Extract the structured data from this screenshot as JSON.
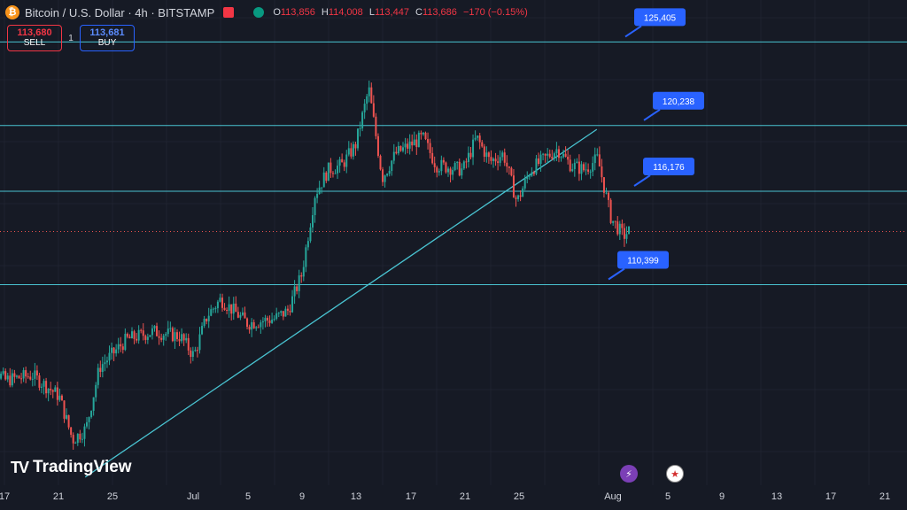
{
  "header": {
    "icon": "bitcoin-icon",
    "symbol": "Bitcoin / U.S. Dollar · 4h · BITSTAMP",
    "ohlc": {
      "o_label": "O",
      "o": "113,856",
      "h_label": "H",
      "h": "114,008",
      "l_label": "L",
      "l": "113,447",
      "c_label": "C",
      "c": "113,686",
      "change": "−170 (−0.15%)"
    }
  },
  "trade": {
    "sell_price": "113,680",
    "sell_label": "SELL",
    "spread": "1",
    "buy_price": "113,681",
    "buy_label": "BUY"
  },
  "logo": {
    "text": "TradingView"
  },
  "colors": {
    "background": "#161a25",
    "up": "#26a69a",
    "down": "#ef5350",
    "line": "#49c3d1",
    "label_bg": "#2962ff"
  },
  "price_labels": [
    "125,405",
    "120,238",
    "116,176",
    "110,399"
  ],
  "x_axis": [
    "17",
    "21",
    "25",
    "Jul",
    "5",
    "9",
    "13",
    "17",
    "21",
    "25",
    "Aug",
    "5",
    "9",
    "13",
    "17",
    "21"
  ],
  "chart_data": {
    "type": "candlestick",
    "horizontal_levels": [
      125405,
      120238,
      116176,
      110399
    ],
    "current_price": 113686,
    "price_range": [
      98000,
      128000
    ],
    "trendline": {
      "from": [
        "Jun 23",
        98500
      ],
      "to": [
        "Jul 31",
        120000
      ]
    },
    "close_path": [
      {
        "t": "Jun 15",
        "close": 106000
      },
      {
        "t": "Jun 17",
        "close": 104500
      },
      {
        "t": "Jun 19",
        "close": 104800
      },
      {
        "t": "Jun 21",
        "close": 103500
      },
      {
        "t": "Jun 22",
        "close": 100800
      },
      {
        "t": "Jun 23",
        "close": 101500
      },
      {
        "t": "Jun 24",
        "close": 105300
      },
      {
        "t": "Jun 26",
        "close": 107000
      },
      {
        "t": "Jun 28",
        "close": 107500
      },
      {
        "t": "Jun 30",
        "close": 107200
      },
      {
        "t": "Jul 1",
        "close": 106000
      },
      {
        "t": "Jul 2",
        "close": 108500
      },
      {
        "t": "Jul 3",
        "close": 109500
      },
      {
        "t": "Jul 5",
        "close": 108000
      },
      {
        "t": "Jul 7",
        "close": 108300
      },
      {
        "t": "Jul 8",
        "close": 108800
      },
      {
        "t": "Jul 9",
        "close": 111000
      },
      {
        "t": "Jul 10",
        "close": 116000
      },
      {
        "t": "Jul 11",
        "close": 117500
      },
      {
        "t": "Jul 12",
        "close": 117800
      },
      {
        "t": "Jul 13",
        "close": 119000
      },
      {
        "t": "Jul 14",
        "close": 122500
      },
      {
        "t": "Jul 15",
        "close": 117000
      },
      {
        "t": "Jul 16",
        "close": 118500
      },
      {
        "t": "Jul 18",
        "close": 119500
      },
      {
        "t": "Jul 19",
        "close": 117800
      },
      {
        "t": "Jul 21",
        "close": 117500
      },
      {
        "t": "Jul 22",
        "close": 119500
      },
      {
        "t": "Jul 23",
        "close": 118000
      },
      {
        "t": "Jul 24",
        "close": 118500
      },
      {
        "t": "Jul 25",
        "close": 115500
      },
      {
        "t": "Jul 26",
        "close": 117500
      },
      {
        "t": "Jul 28",
        "close": 118800
      },
      {
        "t": "Jul 29",
        "close": 117800
      },
      {
        "t": "Jul 30",
        "close": 117500
      },
      {
        "t": "Jul 31",
        "close": 118200
      },
      {
        "t": "Aug 1",
        "close": 114500
      },
      {
        "t": "Aug 2",
        "close": 113400
      },
      {
        "t": "Aug 2",
        "close": 113686
      }
    ]
  }
}
